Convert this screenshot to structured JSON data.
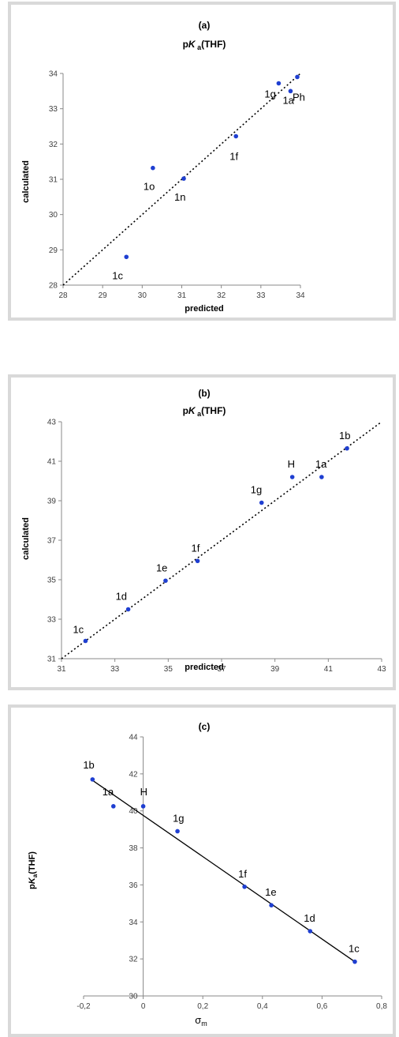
{
  "chart_data": [
    {
      "id": "a",
      "type": "scatter",
      "title": "(a)",
      "subtitle_parts": [
        "p",
        "K",
        " a",
        "(THF)"
      ],
      "xlabel": "predicted",
      "ylabel": "calculated",
      "xlim": [
        28,
        34
      ],
      "ylim": [
        28,
        34
      ],
      "xticks": [
        28,
        29,
        30,
        31,
        32,
        33,
        34
      ],
      "yticks": [
        28,
        29,
        30,
        31,
        32,
        33,
        34
      ],
      "xtick_labels": [
        "28",
        "29",
        "30",
        "31",
        "32",
        "33",
        "34"
      ],
      "ytick_labels": [
        "28",
        "29",
        "30",
        "31",
        "32",
        "33",
        "34"
      ],
      "grid": false,
      "points": [
        {
          "label": "1c",
          "x": 29.6,
          "y": 28.8
        },
        {
          "label": "1o",
          "x": 30.27,
          "y": 31.32
        },
        {
          "label": "1n",
          "x": 31.05,
          "y": 31.02
        },
        {
          "label": "1f",
          "x": 32.37,
          "y": 32.22
        },
        {
          "label": "1g",
          "x": 33.45,
          "y": 33.72
        },
        {
          "label": "1a",
          "x": 33.75,
          "y": 33.5
        },
        {
          "label": "Ph",
          "x": 33.92,
          "y": 33.9
        }
      ],
      "fit_line": {
        "style": "dotted",
        "x": [
          28,
          34
        ],
        "y": [
          28,
          34
        ]
      },
      "point_color": "#1f3fd1"
    },
    {
      "id": "b",
      "type": "scatter",
      "title": "(b)",
      "subtitle_parts": [
        "p",
        "K",
        " a",
        "(THF)"
      ],
      "xlabel": "predicted",
      "ylabel": "calculated",
      "xlim": [
        31,
        43
      ],
      "ylim": [
        31,
        43
      ],
      "xticks": [
        31,
        33,
        35,
        37,
        39,
        41,
        43
      ],
      "yticks": [
        31,
        33,
        35,
        37,
        39,
        41,
        43
      ],
      "xtick_labels": [
        "31",
        "33",
        "35",
        "37",
        "39",
        "41",
        "43"
      ],
      "ytick_labels": [
        "31",
        "33",
        "35",
        "37",
        "39",
        "41",
        "43"
      ],
      "grid": false,
      "points": [
        {
          "label": "1c",
          "x": 31.9,
          "y": 31.9
        },
        {
          "label": "1d",
          "x": 33.5,
          "y": 33.5
        },
        {
          "label": "1e",
          "x": 34.9,
          "y": 34.95
        },
        {
          "label": "1f",
          "x": 36.1,
          "y": 35.95
        },
        {
          "label": "1g",
          "x": 38.5,
          "y": 38.9
        },
        {
          "label": "H",
          "x": 39.65,
          "y": 40.2
        },
        {
          "label": "1a",
          "x": 40.75,
          "y": 40.2
        },
        {
          "label": "1b",
          "x": 41.7,
          "y": 41.65
        }
      ],
      "fit_line": {
        "style": "dotted",
        "x": [
          31,
          43
        ],
        "y": [
          31,
          43
        ]
      },
      "point_color": "#1f3fd1"
    },
    {
      "id": "c",
      "type": "scatter",
      "title": "(c)",
      "xlabel_parts": [
        "σ",
        "m"
      ],
      "ylabel_parts": [
        "p",
        "K",
        "a",
        "(THF)"
      ],
      "xlim": [
        -0.2,
        0.8
      ],
      "ylim": [
        30,
        44
      ],
      "xticks": [
        -0.2,
        0,
        0.2,
        0.4,
        0.6,
        0.8
      ],
      "yticks": [
        30,
        32,
        34,
        36,
        38,
        40,
        42,
        44
      ],
      "xtick_labels": [
        "-0,2",
        "0",
        "0,2",
        "0,4",
        "0,6",
        "0,8"
      ],
      "ytick_labels": [
        "30",
        "32",
        "34",
        "36",
        "38",
        "40",
        "42",
        "44"
      ],
      "grid": false,
      "points": [
        {
          "label": "1b",
          "x": -0.17,
          "y": 41.7
        },
        {
          "label": "1a",
          "x": -0.1,
          "y": 40.25
        },
        {
          "label": "H",
          "x": 0.0,
          "y": 40.25
        },
        {
          "label": "1g",
          "x": 0.115,
          "y": 38.9
        },
        {
          "label": "1f",
          "x": 0.34,
          "y": 35.9
        },
        {
          "label": "1e",
          "x": 0.43,
          "y": 34.9
        },
        {
          "label": "1d",
          "x": 0.56,
          "y": 33.5
        },
        {
          "label": "1c",
          "x": 0.71,
          "y": 31.85
        }
      ],
      "fit_line": {
        "style": "solid",
        "x": [
          -0.17,
          0.71
        ],
        "y": [
          41.65,
          31.85
        ]
      },
      "point_color": "#1f3fd1"
    }
  ]
}
